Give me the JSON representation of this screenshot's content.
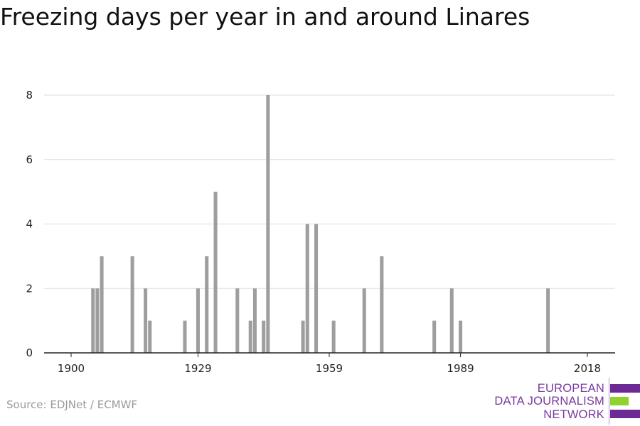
{
  "title": "Freezing days per year in and around Linares",
  "source": "Source: EDJNet / ECMWF",
  "logo": {
    "lines": [
      "EUROPEAN",
      "DATA JOURNALISM",
      "NETWORK"
    ],
    "colors": {
      "primary": "#6b2a94",
      "accent": "#8fd42a",
      "text": "#7a3aa0"
    }
  },
  "chart_data": {
    "type": "bar",
    "title": "Freezing days per year in and around Linares",
    "xlabel": "",
    "ylabel": "",
    "xlim": [
      1900,
      2018
    ],
    "ylim": [
      0,
      8
    ],
    "x_ticks": [
      1900,
      1929,
      1959,
      1989,
      2018
    ],
    "y_ticks": [
      0,
      2,
      4,
      6,
      8
    ],
    "grid": true,
    "bar_color": "#9e9e9e",
    "x": [
      1905,
      1906,
      1907,
      1914,
      1917,
      1918,
      1926,
      1929,
      1931,
      1933,
      1938,
      1941,
      1942,
      1944,
      1945,
      1953,
      1954,
      1956,
      1960,
      1967,
      1971,
      1983,
      1987,
      1989,
      2009
    ],
    "values": [
      2,
      2,
      3,
      3,
      2,
      1,
      1,
      2,
      3,
      5,
      2,
      1,
      2,
      1,
      8,
      1,
      4,
      4,
      1,
      2,
      3,
      1,
      2,
      1,
      2
    ]
  }
}
